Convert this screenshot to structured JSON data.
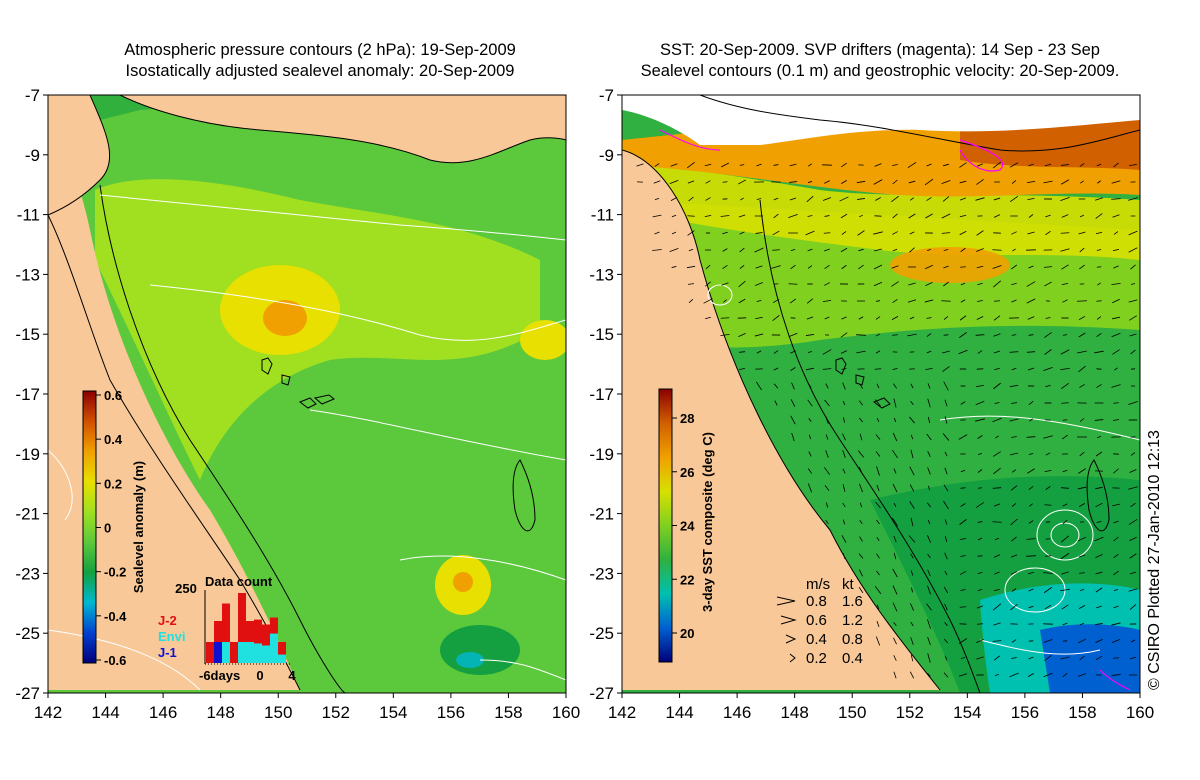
{
  "left_panel": {
    "title_line1": "Atmospheric pressure contours (2 hPa): 19-Sep-2009",
    "title_line2": "Isostatically adjusted sealevel anomaly: 20-Sep-2009",
    "colorbar": {
      "label": "Sealevel anomaly (m)",
      "ticks": [
        "0.6",
        "0.4",
        "0.2",
        "0",
        "-0.2",
        "-0.4",
        "-0.6"
      ]
    },
    "data_count": {
      "title": "Data count",
      "ymax_label": "250",
      "x_labels": [
        "-6days",
        "0",
        "4"
      ],
      "legend": [
        {
          "name": "J-2",
          "color": "#e01010"
        },
        {
          "name": "Envi",
          "color": "#20e0e0"
        },
        {
          "name": "J-1",
          "color": "#1010d0"
        }
      ],
      "bars_red": [
        0.3,
        0.6,
        0.85,
        0.3,
        1.0,
        0.6,
        0.62,
        0.55,
        0.65,
        0.3,
        0.0
      ],
      "bars_cyan": [
        0.0,
        0.0,
        0.3,
        0.0,
        0.3,
        0.3,
        0.28,
        0.25,
        0.42,
        0.12,
        0.0
      ],
      "bars_blue": [
        0.0,
        0.3,
        0.0,
        0.0,
        0.0,
        0.0,
        0.0,
        0.0,
        0.0,
        0.0,
        0.0
      ]
    }
  },
  "right_panel": {
    "title_line1": "SST: 20-Sep-2009. SVP drifters (magenta): 14 Sep - 23 Sep",
    "title_line2": "Sealevel contours (0.1 m) and geostrophic velocity: 20-Sep-2009.",
    "colorbar": {
      "label": "3-day SST composite (deg C)",
      "ticks": [
        "28",
        "26",
        "24",
        "22",
        "20"
      ]
    },
    "velocity_legend": {
      "header_ms": "m/s",
      "header_kt": "kt",
      "rows": [
        {
          "ms": "0.8",
          "kt": "1.6"
        },
        {
          "ms": "0.6",
          "kt": "1.2"
        },
        {
          "ms": "0.4",
          "kt": "0.8"
        },
        {
          "ms": "0.2",
          "kt": "0.4"
        }
      ]
    }
  },
  "axes": {
    "x_ticks": [
      "142",
      "144",
      "146",
      "148",
      "150",
      "152",
      "154",
      "156",
      "158",
      "160"
    ],
    "y_ticks": [
      "-7",
      "-9",
      "-11",
      "-13",
      "-15",
      "-17",
      "-19",
      "-21",
      "-23",
      "-25",
      "-27"
    ],
    "lon_range": [
      142,
      160
    ],
    "lat_range": [
      -27,
      -7
    ]
  },
  "copyright": "© CSIRO Plotted 27-Jan-2010 12:13",
  "colors": {
    "land": "#f8c898",
    "sla_scale": [
      "#00007a",
      "#0040d0",
      "#00b8d0",
      "#14a040",
      "#5cc83c",
      "#a0e020",
      "#e8e000",
      "#f0a000",
      "#d05000",
      "#8b0000"
    ],
    "sst_scale": [
      "#00007a",
      "#0060d0",
      "#00c0b0",
      "#30b040",
      "#80d020",
      "#d8e000",
      "#f0a000",
      "#d06000",
      "#8b0000"
    ]
  }
}
